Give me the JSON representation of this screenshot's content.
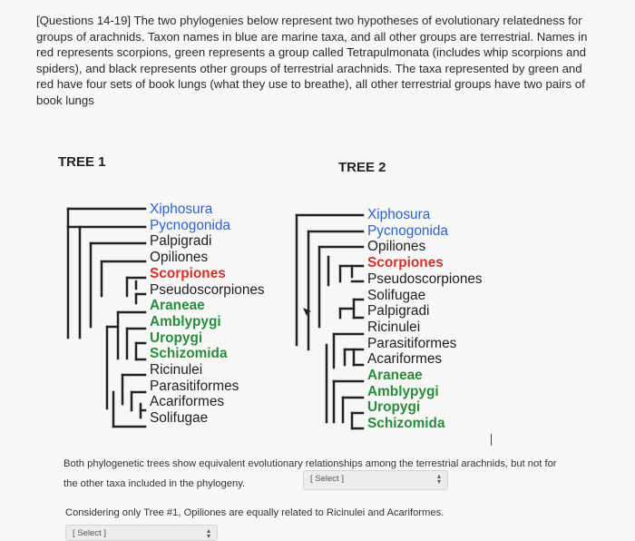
{
  "intro": "[Questions 14-19] The two phylogenies below represent two hypotheses of evolutionary relatedness for groups of arachnids. Taxon names in blue are marine taxa, and all other groups are terrestrial. Names in red represents scorpions, green represents a group called Tetrapulmonata (includes whip scorpions and spiders), and black represents other groups of terrestrial arachnids. The taxa represented by green and red have four sets of book lungs (what they use to breathe), all other terrestrial groups have two pairs of book lungs",
  "tree1": {
    "title": "TREE 1",
    "taxa": [
      {
        "name": "Xiphosura",
        "color": "blue"
      },
      {
        "name": "Pycnogonida",
        "color": "blue"
      },
      {
        "name": "Palpigradi",
        "color": "black"
      },
      {
        "name": "Opiliones",
        "color": "black"
      },
      {
        "name": "Scorpiones",
        "color": "red"
      },
      {
        "name": "Pseudoscorpiones",
        "color": "black"
      },
      {
        "name": "Araneae",
        "color": "green"
      },
      {
        "name": "Amblypygi",
        "color": "green"
      },
      {
        "name": "Uropygi",
        "color": "green"
      },
      {
        "name": "Schizomida",
        "color": "green"
      },
      {
        "name": "Ricinulei",
        "color": "black"
      },
      {
        "name": "Parasitiformes",
        "color": "black"
      },
      {
        "name": "Acariformes",
        "color": "black"
      },
      {
        "name": "Solifugae",
        "color": "black"
      }
    ]
  },
  "tree2": {
    "title": "TREE 2",
    "taxa": [
      {
        "name": "Xiphosura",
        "color": "blue"
      },
      {
        "name": "Pycnogonida",
        "color": "blue"
      },
      {
        "name": "Opiliones",
        "color": "black"
      },
      {
        "name": "Scorpiones",
        "color": "red"
      },
      {
        "name": "Pseudoscorpiones",
        "color": "black"
      },
      {
        "name": "Solifugae",
        "color": "black"
      },
      {
        "name": "Palpigradi",
        "color": "black"
      },
      {
        "name": "Ricinulei",
        "color": "black"
      },
      {
        "name": "Parasitiformes",
        "color": "black"
      },
      {
        "name": "Acariformes",
        "color": "black"
      },
      {
        "name": "Araneae",
        "color": "green"
      },
      {
        "name": "Amblypygi",
        "color": "green"
      },
      {
        "name": "Uropygi",
        "color": "green"
      },
      {
        "name": "Schizomida",
        "color": "green"
      }
    ]
  },
  "question1": {
    "text": "Both phylogenetic trees show equivalent evolutionary relationships among the terrestrial arachnids, but not for the other taxa included in the phylogeny.",
    "select_value": "[ Select ]"
  },
  "question2": {
    "text": "Considering only Tree #1, Opiliones are equally related to Ricinulei and Acariformes.",
    "select_value": "[ Select ]"
  },
  "colors": {
    "blue": "#2f63c8",
    "red": "#d2312c",
    "green": "#2b8a3e",
    "black": "#1f1f1f"
  }
}
